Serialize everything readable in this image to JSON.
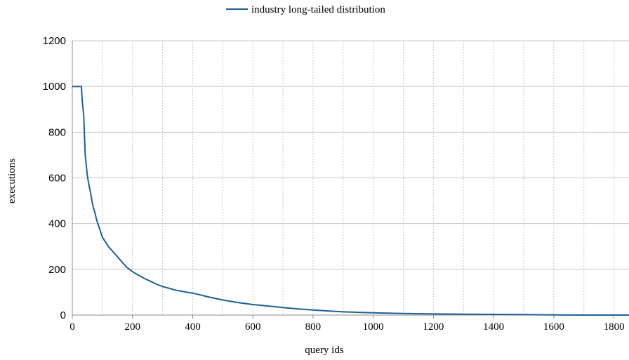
{
  "chart_data": {
    "type": "line",
    "title": "",
    "xlabel": "query ids",
    "ylabel": "executions",
    "xlim": [
      0,
      1850
    ],
    "ylim": [
      0,
      1200
    ],
    "x_ticks": [
      "0",
      "200",
      "400",
      "600",
      "800",
      "1000",
      "1200",
      "1400",
      "1600",
      "1800"
    ],
    "y_ticks": [
      "0",
      "200",
      "400",
      "600",
      "800",
      "1000",
      "1200"
    ],
    "grid": {
      "horizontal": "solid",
      "vertical": "dashed",
      "vertical_every": 100
    },
    "legend": {
      "position": "top-center"
    },
    "colors": {
      "series": "#1f5f96",
      "grid": "#c8c8c8",
      "axis": "#8c8c8c"
    },
    "series": [
      {
        "name": "industry long-tailed distribution",
        "x": [
          0,
          30,
          33,
          36,
          38,
          40,
          43,
          46,
          50,
          55,
          60,
          65,
          70,
          75,
          80,
          85,
          90,
          95,
          100,
          110,
          120,
          130,
          140,
          150,
          160,
          170,
          180,
          190,
          200,
          210,
          220,
          240,
          260,
          280,
          300,
          320,
          340,
          360,
          380,
          400,
          420,
          450,
          500,
          550,
          600,
          650,
          700,
          750,
          800,
          850,
          900,
          950,
          1000,
          1100,
          1200,
          1300,
          1400,
          1500,
          1600,
          1700,
          1850
        ],
        "y": [
          1000,
          1000,
          940,
          900,
          870,
          800,
          700,
          660,
          610,
          570,
          540,
          500,
          470,
          450,
          420,
          400,
          380,
          360,
          340,
          320,
          300,
          285,
          270,
          255,
          240,
          225,
          210,
          200,
          190,
          182,
          175,
          160,
          148,
          135,
          125,
          118,
          110,
          105,
          100,
          96,
          90,
          80,
          66,
          55,
          46,
          40,
          33,
          27,
          22,
          18,
          14,
          12,
          10,
          7,
          5,
          4,
          3,
          2,
          1,
          0,
          0
        ]
      }
    ]
  }
}
